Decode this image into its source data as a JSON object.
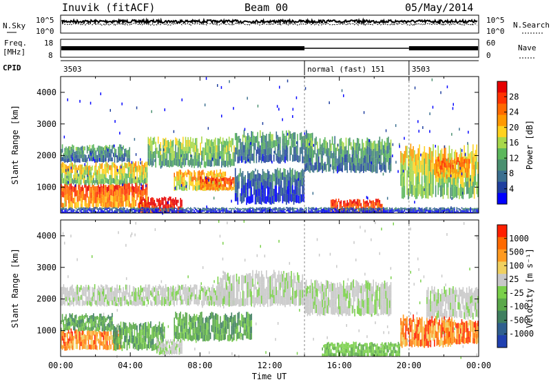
{
  "header": {
    "station": "Inuvik (fitACF)",
    "beam": "Beam 00",
    "date": "05/May/2014"
  },
  "top_panels": {
    "nsky_label": "N.Sky",
    "nsearch_label": "N.Search",
    "freq_label_1": "Freq.",
    "freq_label_2": "[MHz]",
    "nave_label": "Nave",
    "cpid_label": "CPID",
    "noise_left_ticks": [
      "10^5",
      "10^0"
    ],
    "noise_right_ticks": [
      "10^5",
      "10^0"
    ],
    "freq_left_ticks": [
      "18",
      "8"
    ],
    "freq_right_ticks": [
      "60",
      "0"
    ],
    "cpid_segments": [
      {
        "label": "3503",
        "start_h": 0,
        "end_h": 14
      },
      {
        "label": "normal (fast) 151",
        "start_h": 14,
        "end_h": 20
      },
      {
        "label": "3503",
        "start_h": 20,
        "end_h": 24
      }
    ]
  },
  "colors": {
    "power_scale": [
      "#0000ff",
      "#1f3f9f",
      "#3a6f8f",
      "#4a9070",
      "#5cb85c",
      "#a8d84a",
      "#ffd21e",
      "#ff9900",
      "#ff6a00",
      "#ff3300",
      "#e60000"
    ],
    "velocity_scale": [
      "#2040b0",
      "#2f5f8f",
      "#3f7f5f",
      "#5aa84a",
      "#7ad04a",
      "#c8c8c8",
      "#f0d060",
      "#ff9a20",
      "#ff6a00",
      "#ff2000"
    ],
    "gray": "#c8c8c8"
  },
  "chart_data": [
    {
      "type": "heatmap",
      "title": "Power",
      "xlabel": "Time UT",
      "ylabel": "Slant Range [km]",
      "xlim": [
        0,
        24
      ],
      "ylim": [
        180,
        4500
      ],
      "x_ticks": [
        "00:00",
        "04:00",
        "08:00",
        "12:00",
        "16:00",
        "20:00",
        "00:00"
      ],
      "y_ticks": [
        "1000",
        "2000",
        "3000",
        "4000"
      ],
      "colorbar_label": "Power [dB]",
      "colorbar_ticks": [
        "28",
        "24",
        "20",
        "16",
        "12",
        "8",
        "4"
      ],
      "bands": [
        {
          "t0": 0.0,
          "t1": 5.0,
          "r0": 350,
          "r1": 1100,
          "p": 0.78
        },
        {
          "t0": 0.0,
          "t1": 5.0,
          "r0": 1100,
          "r1": 1750,
          "p": 0.55
        },
        {
          "t0": 4.5,
          "t1": 7.0,
          "r0": 180,
          "r1": 650,
          "p": 0.95
        },
        {
          "t0": 0.0,
          "t1": 4.0,
          "r0": 1800,
          "r1": 2300,
          "p": 0.32
        },
        {
          "t0": 5.0,
          "t1": 10.0,
          "r0": 1650,
          "r1": 2500,
          "p": 0.45
        },
        {
          "t0": 6.5,
          "t1": 9.5,
          "r0": 900,
          "r1": 1500,
          "p": 0.62
        },
        {
          "t0": 8.0,
          "t1": 10.0,
          "r0": 900,
          "r1": 1300,
          "p": 0.82
        },
        {
          "t0": 10.0,
          "t1": 14.5,
          "r0": 1800,
          "r1": 2700,
          "p": 0.3
        },
        {
          "t0": 10.0,
          "t1": 14.0,
          "r0": 500,
          "r1": 1500,
          "p": 0.2
        },
        {
          "t0": 14.0,
          "t1": 19.0,
          "r0": 1500,
          "r1": 2500,
          "p": 0.33
        },
        {
          "t0": 15.5,
          "t1": 18.5,
          "r0": 180,
          "r1": 600,
          "p": 0.85
        },
        {
          "t0": 19.5,
          "t1": 24.0,
          "r0": 700,
          "r1": 2200,
          "p": 0.55
        },
        {
          "t0": 21.5,
          "t1": 23.5,
          "r0": 1300,
          "r1": 1900,
          "p": 0.75
        },
        {
          "t0": 0.0,
          "t1": 24.0,
          "r0": 180,
          "r1": 350,
          "p": 0.15
        }
      ]
    },
    {
      "type": "heatmap",
      "title": "Velocity",
      "xlabel": "Time UT",
      "ylabel": "Slant Range [km]",
      "xlim": [
        0,
        24
      ],
      "ylim": [
        180,
        4500
      ],
      "x_ticks": [
        "00:00",
        "04:00",
        "08:00",
        "12:00",
        "16:00",
        "20:00",
        "00:00"
      ],
      "y_ticks": [
        "1000",
        "2000",
        "3000",
        "4000"
      ],
      "colorbar_label": "Velocity [m s⁻¹]",
      "colorbar_ticks": [
        "1000",
        "500",
        "100",
        "25",
        "-25",
        "-100",
        "-500",
        "-1000"
      ],
      "bands": [
        {
          "t0": 0.0,
          "t1": 3.5,
          "r0": 400,
          "r1": 1000,
          "v": "orange"
        },
        {
          "t0": 0.0,
          "t1": 3.0,
          "r0": 1000,
          "r1": 1500,
          "v": "green"
        },
        {
          "t0": 3.0,
          "t1": 6.0,
          "r0": 400,
          "r1": 1200,
          "v": "green"
        },
        {
          "t0": 5.5,
          "t1": 7.0,
          "r0": 250,
          "r1": 700,
          "v": "gray"
        },
        {
          "t0": 6.5,
          "t1": 11.0,
          "r0": 700,
          "r1": 1500,
          "v": "green"
        },
        {
          "t0": 0.0,
          "t1": 10.0,
          "r0": 1800,
          "r1": 2400,
          "v": "gray"
        },
        {
          "t0": 9.0,
          "t1": 14.0,
          "r0": 1800,
          "r1": 2800,
          "v": "gray"
        },
        {
          "t0": 14.0,
          "t1": 19.0,
          "r0": 1500,
          "r1": 2500,
          "v": "gray"
        },
        {
          "t0": 15.0,
          "t1": 19.5,
          "r0": 180,
          "r1": 600,
          "v": "lightgreen"
        },
        {
          "t0": 19.5,
          "t1": 22.5,
          "r0": 500,
          "r1": 1400,
          "v": "orange"
        },
        {
          "t0": 22.0,
          "t1": 24.0,
          "r0": 600,
          "r1": 1300,
          "v": "orange"
        },
        {
          "t0": 21.0,
          "t1": 24.0,
          "r0": 1400,
          "r1": 2300,
          "v": "gray"
        }
      ]
    }
  ]
}
